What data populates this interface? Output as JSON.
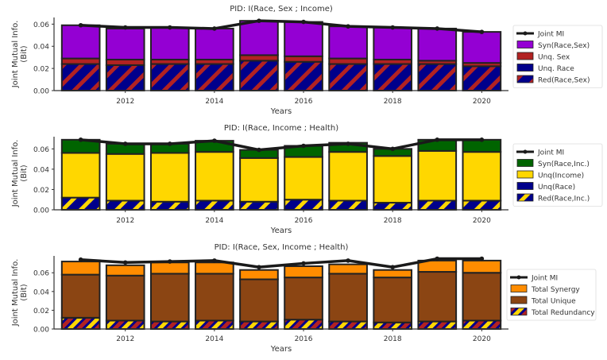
{
  "colors": {
    "syn_purple": "#9400d3",
    "unq_red": "#b22222",
    "unq_navy": "#00008b",
    "syn_green": "#006400",
    "unq_gold": "#ffd700",
    "total_orange": "#ff8c00",
    "total_brown": "#8b4513",
    "mi_line": "#1a1a1a"
  },
  "chart_data": [
    {
      "type": "bar",
      "stacked": true,
      "title": "PID: I(Race, Sex ; Income)",
      "xlabel": "Years",
      "ylabel": "Joint Mutual Info.\n(Bit)",
      "x": [
        2011,
        2012,
        2013,
        2014,
        2015,
        2016,
        2017,
        2018,
        2019,
        2020
      ],
      "xticks": [
        "2012",
        "2014",
        "2016",
        "2018",
        "2020"
      ],
      "yticks": [
        "0.00",
        "0.02",
        "0.04",
        "0.06"
      ],
      "ylim": [
        0,
        0.066
      ],
      "legend_position": "right",
      "series": [
        {
          "name": "Red(Race,Sex)",
          "hatch": true,
          "color": "#00008b",
          "hatch_color": "#b22222",
          "values": [
            0.024,
            0.023,
            0.024,
            0.024,
            0.027,
            0.026,
            0.024,
            0.024,
            0.024,
            0.022
          ]
        },
        {
          "name": "Unq. Race",
          "color": "#00008b",
          "values": [
            0.0,
            0.0,
            0.0,
            0.0,
            0.0,
            0.0,
            0.0,
            0.0,
            0.0,
            0.0
          ]
        },
        {
          "name": "Unq. Sex",
          "color": "#b22222",
          "values": [
            0.005,
            0.005,
            0.004,
            0.004,
            0.005,
            0.005,
            0.005,
            0.004,
            0.003,
            0.003
          ]
        },
        {
          "name": "Syn(Race,Sex)",
          "color": "#9400d3",
          "values": [
            0.03,
            0.028,
            0.029,
            0.028,
            0.031,
            0.031,
            0.029,
            0.029,
            0.029,
            0.028
          ]
        }
      ],
      "line": {
        "name": "Joint MI",
        "values": [
          0.059,
          0.057,
          0.057,
          0.056,
          0.063,
          0.062,
          0.058,
          0.057,
          0.056,
          0.053
        ]
      }
    },
    {
      "type": "bar",
      "stacked": true,
      "title": "PID: I(Race, Income ; Health)",
      "xlabel": "Years",
      "ylabel": "Joint Mutual Info.\n(Bit)",
      "x": [
        2011,
        2012,
        2013,
        2014,
        2015,
        2016,
        2017,
        2018,
        2019,
        2020
      ],
      "xticks": [
        "2012",
        "2014",
        "2016",
        "2018",
        "2020"
      ],
      "yticks": [
        "0.00",
        "0.02",
        "0.04",
        "0.06"
      ],
      "ylim": [
        0,
        0.072
      ],
      "legend_position": "right",
      "series": [
        {
          "name": "Red(Race,Inc.)",
          "hatch": true,
          "color": "#00008b",
          "hatch_color": "#ffd700",
          "values": [
            0.012,
            0.009,
            0.008,
            0.009,
            0.008,
            0.01,
            0.009,
            0.007,
            0.009,
            0.009
          ]
        },
        {
          "name": "Unq(Race)",
          "color": "#00008b",
          "values": [
            0.0,
            0.0,
            0.0,
            0.0,
            0.0,
            0.0,
            0.0,
            0.0,
            0.0,
            0.0
          ]
        },
        {
          "name": "Unq(Income)",
          "color": "#ffd700",
          "values": [
            0.044,
            0.046,
            0.048,
            0.048,
            0.043,
            0.042,
            0.048,
            0.046,
            0.049,
            0.048
          ]
        },
        {
          "name": "Syn(Race,Inc.)",
          "color": "#006400",
          "values": [
            0.013,
            0.01,
            0.009,
            0.011,
            0.008,
            0.011,
            0.009,
            0.007,
            0.011,
            0.012
          ]
        }
      ],
      "line": {
        "name": "Joint MI",
        "values": [
          0.069,
          0.065,
          0.065,
          0.068,
          0.059,
          0.063,
          0.065,
          0.06,
          0.069,
          0.069
        ]
      }
    },
    {
      "type": "bar",
      "stacked": true,
      "title": "PID: I(Race, Sex, Income ; Health)",
      "xlabel": "Years",
      "ylabel": "Joint Mutual Info.\n(Bit)",
      "x": [
        2011,
        2012,
        2013,
        2014,
        2015,
        2016,
        2017,
        2018,
        2019,
        2020
      ],
      "xticks": [
        "2012",
        "2014",
        "2016",
        "2018",
        "2020"
      ],
      "yticks": [
        "0.00",
        "0.02",
        "0.04",
        "0.06"
      ],
      "ylim": [
        0,
        0.078
      ],
      "legend_position": "right",
      "series": [
        {
          "name": "Total Redundancy",
          "hatch": true,
          "hatch_multi": true,
          "color": "#00008b",
          "hatch_color": "#ffd700",
          "hatch_color2": "#b22222",
          "values": [
            0.012,
            0.009,
            0.008,
            0.009,
            0.008,
            0.01,
            0.008,
            0.007,
            0.008,
            0.009
          ]
        },
        {
          "name": "Total Unique",
          "color": "#8b4513",
          "values": [
            0.046,
            0.048,
            0.051,
            0.05,
            0.045,
            0.045,
            0.051,
            0.048,
            0.053,
            0.051
          ]
        },
        {
          "name": "Total Synergy",
          "color": "#ff8c00",
          "values": [
            0.014,
            0.011,
            0.012,
            0.012,
            0.01,
            0.012,
            0.01,
            0.008,
            0.012,
            0.013
          ]
        }
      ],
      "line": {
        "name": "Joint MI",
        "values": [
          0.074,
          0.071,
          0.072,
          0.073,
          0.066,
          0.07,
          0.073,
          0.066,
          0.075,
          0.075
        ]
      }
    }
  ]
}
